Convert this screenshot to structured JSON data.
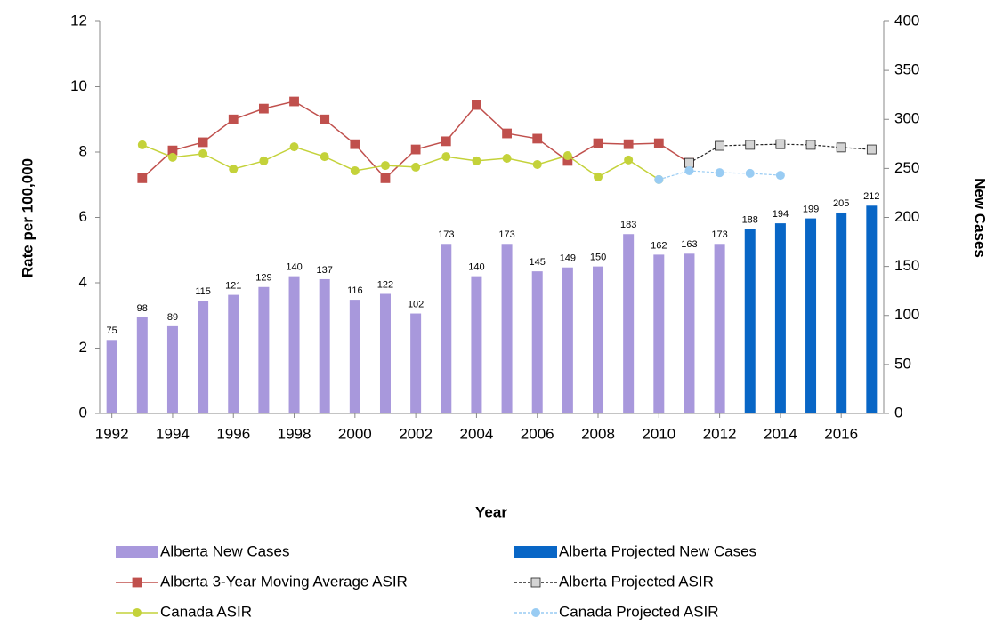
{
  "chart_data": {
    "type": "combo",
    "y_label": "Rate per 100,000",
    "y2_label": "New Cases",
    "x_label": "Year",
    "x": [
      1992,
      1993,
      1994,
      1995,
      1996,
      1997,
      1998,
      1999,
      2000,
      2001,
      2002,
      2003,
      2004,
      2005,
      2006,
      2007,
      2008,
      2009,
      2010,
      2011,
      2012,
      2013,
      2014,
      2015,
      2016,
      2017
    ],
    "xlim": [
      1991.6,
      2017.4
    ],
    "xticks": [
      1992,
      1994,
      1996,
      1998,
      2000,
      2002,
      2004,
      2006,
      2008,
      2010,
      2012,
      2014,
      2016
    ],
    "ylim": [
      0,
      12
    ],
    "yticks": [
      0,
      2,
      4,
      6,
      8,
      10,
      12
    ],
    "y2lim": [
      0,
      400
    ],
    "y2ticks": [
      0,
      50,
      100,
      150,
      200,
      250,
      300,
      350,
      400
    ],
    "data_labels": true,
    "series": [
      {
        "name": "Alberta New Cases",
        "kind": "bar",
        "axis": "y2",
        "color": "#a898dc",
        "values": [
          75,
          98,
          89,
          115,
          121,
          129,
          140,
          137,
          116,
          122,
          102,
          173,
          140,
          173,
          145,
          149,
          150,
          183,
          162,
          163,
          173,
          null,
          null,
          null,
          null,
          null
        ]
      },
      {
        "name": "Alberta Projected New Cases",
        "kind": "bar",
        "axis": "y2",
        "color": "#0866c6",
        "values": [
          null,
          null,
          null,
          null,
          null,
          null,
          null,
          null,
          null,
          null,
          null,
          null,
          null,
          null,
          null,
          null,
          null,
          null,
          null,
          null,
          null,
          188,
          194,
          199,
          205,
          212
        ]
      },
      {
        "name": "Alberta 3-Year Moving Average ASIR",
        "kind": "line",
        "marker": "square",
        "color": "#c0504d",
        "marker_fill": "#c0504d",
        "dashed": false,
        "values": [
          null,
          7.2,
          8.05,
          8.3,
          9.0,
          9.33,
          9.55,
          9.0,
          8.24,
          7.2,
          8.08,
          8.33,
          9.44,
          8.57,
          8.41,
          7.73,
          8.27,
          8.24,
          8.27,
          7.67,
          null,
          null,
          null,
          null,
          null,
          null
        ]
      },
      {
        "name": "Alberta Projected ASIR",
        "kind": "line",
        "marker": "square",
        "color": "#222222",
        "marker_fill": "#d4d4d4",
        "dashed": true,
        "values": [
          null,
          null,
          null,
          null,
          null,
          null,
          null,
          null,
          null,
          null,
          null,
          null,
          null,
          null,
          null,
          null,
          null,
          null,
          null,
          7.67,
          8.19,
          8.22,
          8.24,
          8.22,
          8.14,
          8.08
        ]
      },
      {
        "name": "Canada ASIR",
        "kind": "line",
        "marker": "circle",
        "color": "#c4d23a",
        "marker_fill": "#c4d23a",
        "dashed": false,
        "values": [
          null,
          8.22,
          7.84,
          7.95,
          7.48,
          7.73,
          8.16,
          7.86,
          7.43,
          7.59,
          7.54,
          7.86,
          7.73,
          7.81,
          7.62,
          7.89,
          7.24,
          7.76,
          7.16,
          null,
          null,
          null,
          null,
          null,
          null,
          null
        ]
      },
      {
        "name": "Canada Projected ASIR",
        "kind": "line",
        "marker": "circle",
        "color": "#99ccf3",
        "marker_fill": "#99ccf3",
        "dashed": true,
        "values": [
          null,
          null,
          null,
          null,
          null,
          null,
          null,
          null,
          null,
          null,
          null,
          null,
          null,
          null,
          null,
          null,
          null,
          null,
          7.16,
          7.43,
          7.37,
          7.35,
          7.29,
          null,
          null,
          null
        ]
      }
    ]
  }
}
